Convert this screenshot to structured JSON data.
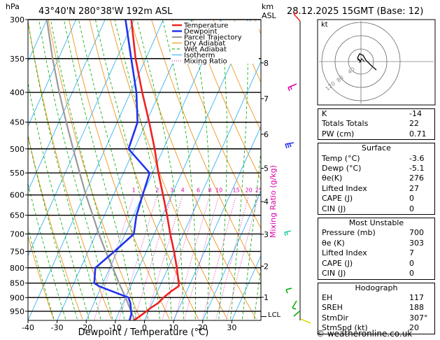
{
  "header": {
    "hpa_label": "hPa",
    "location": "43°40'N  280°38'W  192m  ASL",
    "km_label": "km",
    "asl_label": "ASL",
    "datetime": "28.12.2025  15GMT  (Base: 12)"
  },
  "chart_data": {
    "type": "line",
    "title": "Skew-T log-P diagram",
    "xlabel": "Dewpoint / Temperature (°C)",
    "ylabel": "hPa",
    "x_ticks": [
      -40,
      -30,
      -20,
      -10,
      0,
      10,
      20,
      30
    ],
    "x_tick_labels": [
      "-40",
      "-30",
      "-20",
      "-10",
      "0",
      "10",
      "20",
      "30"
    ],
    "pressure_levels": [
      300,
      350,
      400,
      450,
      500,
      550,
      600,
      650,
      700,
      750,
      800,
      850,
      900,
      950
    ],
    "pressure_labels": [
      "300",
      "350",
      "400",
      "450",
      "500",
      "550",
      "600",
      "650",
      "700",
      "750",
      "800",
      "850",
      "900",
      "950"
    ],
    "km_ticks": [
      {
        "label": "8",
        "p": 356
      },
      {
        "label": "7",
        "p": 410
      },
      {
        "label": "6",
        "p": 472
      },
      {
        "label": "5",
        "p": 540
      },
      {
        "label": "4",
        "p": 616
      },
      {
        "label": "3",
        "p": 701
      },
      {
        "label": "2",
        "p": 795
      },
      {
        "label": "1",
        "p": 899
      }
    ],
    "lcl_label": "LCL",
    "lcl_p": 970,
    "mixing_ratio_title": "Mixing Ratio (g/kg)",
    "mixing_ratio_values": [
      "1",
      "2",
      "3",
      "4",
      "6",
      "8",
      "10",
      "15",
      "20",
      "25"
    ],
    "mixing_ratio_g": [
      1,
      2,
      3,
      4,
      6,
      8,
      10,
      15,
      20,
      25
    ],
    "legend": [
      {
        "name": "Temperature",
        "color": "#ee2222",
        "width": 2.5,
        "dash": ""
      },
      {
        "name": "Dewpoint",
        "color": "#2233ee",
        "width": 2.5,
        "dash": ""
      },
      {
        "name": "Parcel Trajectory",
        "color": "#999999",
        "width": 2,
        "dash": ""
      },
      {
        "name": "Dry Adiabat",
        "color": "#ee8800",
        "width": 1,
        "dash": ""
      },
      {
        "name": "Wet Adiabat",
        "color": "#00aa00",
        "width": 1,
        "dash": "4,3"
      },
      {
        "name": "Isotherm",
        "color": "#22aaee",
        "width": 1,
        "dash": ""
      },
      {
        "name": "Mixing Ratio",
        "color": "#dd00aa",
        "width": 1,
        "dash": "1,2"
      }
    ],
    "series": [
      {
        "name": "Temperature",
        "color": "#ee2222",
        "points": [
          [
            985,
            -3.6
          ],
          [
            960,
            -1.5
          ],
          [
            940,
            0
          ],
          [
            920,
            2
          ],
          [
            900,
            3
          ],
          [
            880,
            4.5
          ],
          [
            860,
            6.5
          ],
          [
            850,
            6
          ],
          [
            800,
            3
          ],
          [
            750,
            -0.5
          ],
          [
            700,
            -4.5
          ],
          [
            650,
            -8.5
          ],
          [
            600,
            -13
          ],
          [
            550,
            -18
          ],
          [
            500,
            -23
          ],
          [
            450,
            -29
          ],
          [
            400,
            -36
          ],
          [
            350,
            -43.5
          ],
          [
            300,
            -51
          ]
        ]
      },
      {
        "name": "Dewpoint",
        "color": "#2233ee",
        "points": [
          [
            985,
            -5.1
          ],
          [
            960,
            -5.5
          ],
          [
            940,
            -6.5
          ],
          [
            920,
            -7.5
          ],
          [
            900,
            -9
          ],
          [
            880,
            -15
          ],
          [
            860,
            -21
          ],
          [
            850,
            -23
          ],
          [
            800,
            -25
          ],
          [
            750,
            -21
          ],
          [
            700,
            -17
          ],
          [
            650,
            -19
          ],
          [
            600,
            -20
          ],
          [
            550,
            -21
          ],
          [
            500,
            -32
          ],
          [
            450,
            -33
          ],
          [
            400,
            -38
          ],
          [
            350,
            -45
          ],
          [
            300,
            -53
          ]
        ]
      },
      {
        "name": "Parcel Trajectory",
        "color": "#999999",
        "points": [
          [
            985,
            -3.6
          ],
          [
            970,
            -4.5
          ],
          [
            900,
            -10
          ],
          [
            850,
            -14.5
          ],
          [
            800,
            -19
          ],
          [
            750,
            -24
          ],
          [
            700,
            -29
          ],
          [
            650,
            -34
          ],
          [
            600,
            -39.5
          ],
          [
            550,
            -45
          ],
          [
            500,
            -51
          ],
          [
            450,
            -57.5
          ],
          [
            400,
            -64.5
          ],
          [
            350,
            -72
          ],
          [
            300,
            -80
          ]
        ]
      }
    ],
    "hodograph": {
      "label": "kt",
      "ring_labels": [
        "40",
        "80",
        "120"
      ]
    },
    "indices": {
      "K": "-14",
      "Totals Totals": "22",
      "PW (cm)": "0.71"
    }
  },
  "table": {
    "top": [
      {
        "label": "K",
        "value": "-14"
      },
      {
        "label": "Totals Totals",
        "value": "22"
      },
      {
        "label": "PW (cm)",
        "value": "0.71"
      }
    ],
    "surface": {
      "title": "Surface",
      "rows": [
        {
          "label": "Temp (°C)",
          "value": "-3.6"
        },
        {
          "label": "Dewp (°C)",
          "value": "-5.1"
        },
        {
          "label": "θe(K)",
          "value": "276"
        },
        {
          "label": "Lifted Index",
          "value": "27"
        },
        {
          "label": "CAPE (J)",
          "value": "0"
        },
        {
          "label": "CIN (J)",
          "value": "0"
        }
      ]
    },
    "most_unstable": {
      "title": "Most Unstable",
      "rows": [
        {
          "label": "Pressure (mb)",
          "value": "700"
        },
        {
          "label": "θe (K)",
          "value": "303"
        },
        {
          "label": "Lifted Index",
          "value": "7"
        },
        {
          "label": "CAPE (J)",
          "value": "0"
        },
        {
          "label": "CIN (J)",
          "value": "0"
        }
      ]
    },
    "hodograph": {
      "title": "Hodograph",
      "rows": [
        {
          "label": "EH",
          "value": "117"
        },
        {
          "label": "SREH",
          "value": "188"
        },
        {
          "label": "StmDir",
          "value": "307°"
        },
        {
          "label": "StmSpd (kt)",
          "value": "20"
        }
      ]
    }
  },
  "footer": {
    "text": "© weatheronline.co.uk"
  },
  "colors": {
    "temperature": "#ee2222",
    "dewpoint": "#2233ee",
    "isotherm": "#22aaee",
    "dry": "#ee8800",
    "wet": "#00aa00",
    "mixing": "#dd00aa"
  }
}
